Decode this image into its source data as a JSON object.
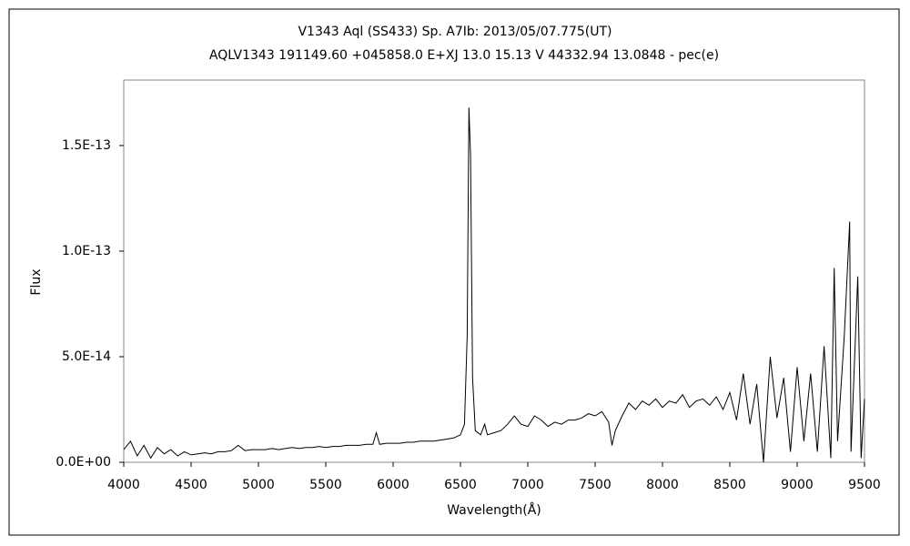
{
  "chart_data": {
    "type": "line",
    "title": "V1343 Aql (SS433)    Sp. A7Ib:    2013/05/07.775(UT)",
    "subtitle": "AQLV1343 191149.60 +045858.0 E+XJ 13.0 15.13 V 44332.94 13.0848 - pec(e)",
    "x_label": "Wavelength(Å)",
    "y_label": "Flux",
    "xlim": [
      4000,
      9500
    ],
    "xticks": [
      4000,
      4500,
      5000,
      5500,
      6000,
      6500,
      7000,
      7500,
      8000,
      8500,
      9000,
      9500
    ],
    "ylim": [
      0,
      1.81e-13
    ],
    "yticks": [
      {
        "value": 0,
        "label": "0.0E+00"
      },
      {
        "value": 5e-14,
        "label": "5.0E-14"
      },
      {
        "value": 1e-13,
        "label": "1.0E-13"
      },
      {
        "value": 1.5e-13,
        "label": "1.5E-13"
      }
    ],
    "color": "#000000",
    "x": [
      4000,
      4050,
      4100,
      4150,
      4200,
      4250,
      4300,
      4350,
      4400,
      4450,
      4500,
      4550,
      4600,
      4650,
      4700,
      4750,
      4800,
      4850,
      4900,
      4950,
      5000,
      5050,
      5100,
      5150,
      5200,
      5250,
      5300,
      5350,
      5400,
      5450,
      5500,
      5550,
      5600,
      5650,
      5700,
      5750,
      5800,
      5850,
      5875,
      5900,
      5950,
      6000,
      6050,
      6100,
      6150,
      6200,
      6250,
      6300,
      6350,
      6400,
      6450,
      6500,
      6530,
      6550,
      6563,
      6575,
      6590,
      6610,
      6650,
      6680,
      6700,
      6750,
      6800,
      6850,
      6900,
      6950,
      7000,
      7050,
      7100,
      7150,
      7200,
      7250,
      7300,
      7350,
      7400,
      7450,
      7500,
      7550,
      7600,
      7625,
      7650,
      7700,
      7750,
      7800,
      7850,
      7900,
      7950,
      8000,
      8050,
      8100,
      8150,
      8200,
      8250,
      8300,
      8350,
      8400,
      8450,
      8500,
      8550,
      8600,
      8650,
      8700,
      8750,
      8800,
      8850,
      8900,
      8950,
      9000,
      9050,
      9100,
      9150,
      9200,
      9250,
      9275,
      9300,
      9350,
      9390,
      9400,
      9450,
      9475,
      9500
    ],
    "values": [
      6e-15,
      1e-14,
      3e-15,
      8e-15,
      2e-15,
      7e-15,
      4e-15,
      6e-15,
      3e-15,
      5e-15,
      3.5e-15,
      4e-15,
      4.5e-15,
      4e-15,
      5e-15,
      5e-15,
      5.5e-15,
      8e-15,
      5.5e-15,
      6e-15,
      6e-15,
      6e-15,
      6.5e-15,
      6e-15,
      6.5e-15,
      7e-15,
      6.5e-15,
      7e-15,
      7e-15,
      7.5e-15,
      7e-15,
      7.5e-15,
      7.5e-15,
      8e-15,
      8e-15,
      8e-15,
      8.5e-15,
      8.5e-15,
      1.4e-14,
      8.5e-15,
      9e-15,
      9e-15,
      9e-15,
      9.5e-15,
      9.5e-15,
      1e-14,
      1e-14,
      1e-14,
      1.05e-14,
      1.1e-14,
      1.15e-14,
      1.3e-14,
      1.8e-14,
      6e-14,
      1.68e-13,
      1.45e-13,
      4e-14,
      1.5e-14,
      1.3e-14,
      1.8e-14,
      1.3e-14,
      1.4e-14,
      1.5e-14,
      1.8e-14,
      2.2e-14,
      1.8e-14,
      1.7e-14,
      2.2e-14,
      2e-14,
      1.7e-14,
      1.9e-14,
      1.8e-14,
      2e-14,
      2e-14,
      2.1e-14,
      2.3e-14,
      2.2e-14,
      2.4e-14,
      1.9e-14,
      8e-15,
      1.5e-14,
      2.2e-14,
      2.8e-14,
      2.5e-14,
      2.9e-14,
      2.7e-14,
      3e-14,
      2.6e-14,
      2.9e-14,
      2.8e-14,
      3.2e-14,
      2.6e-14,
      2.9e-14,
      3e-14,
      2.7e-14,
      3.1e-14,
      2.5e-14,
      3.3e-14,
      2e-14,
      4.2e-14,
      1.8e-14,
      3.7e-14,
      0,
      5e-14,
      2.1e-14,
      4e-14,
      5e-15,
      4.5e-14,
      1e-14,
      4.2e-14,
      5e-15,
      5.5e-14,
      2e-15,
      9.2e-14,
      1e-14,
      6e-14,
      1.14e-13,
      5e-15,
      8.8e-14,
      2e-15,
      3e-14
    ]
  }
}
